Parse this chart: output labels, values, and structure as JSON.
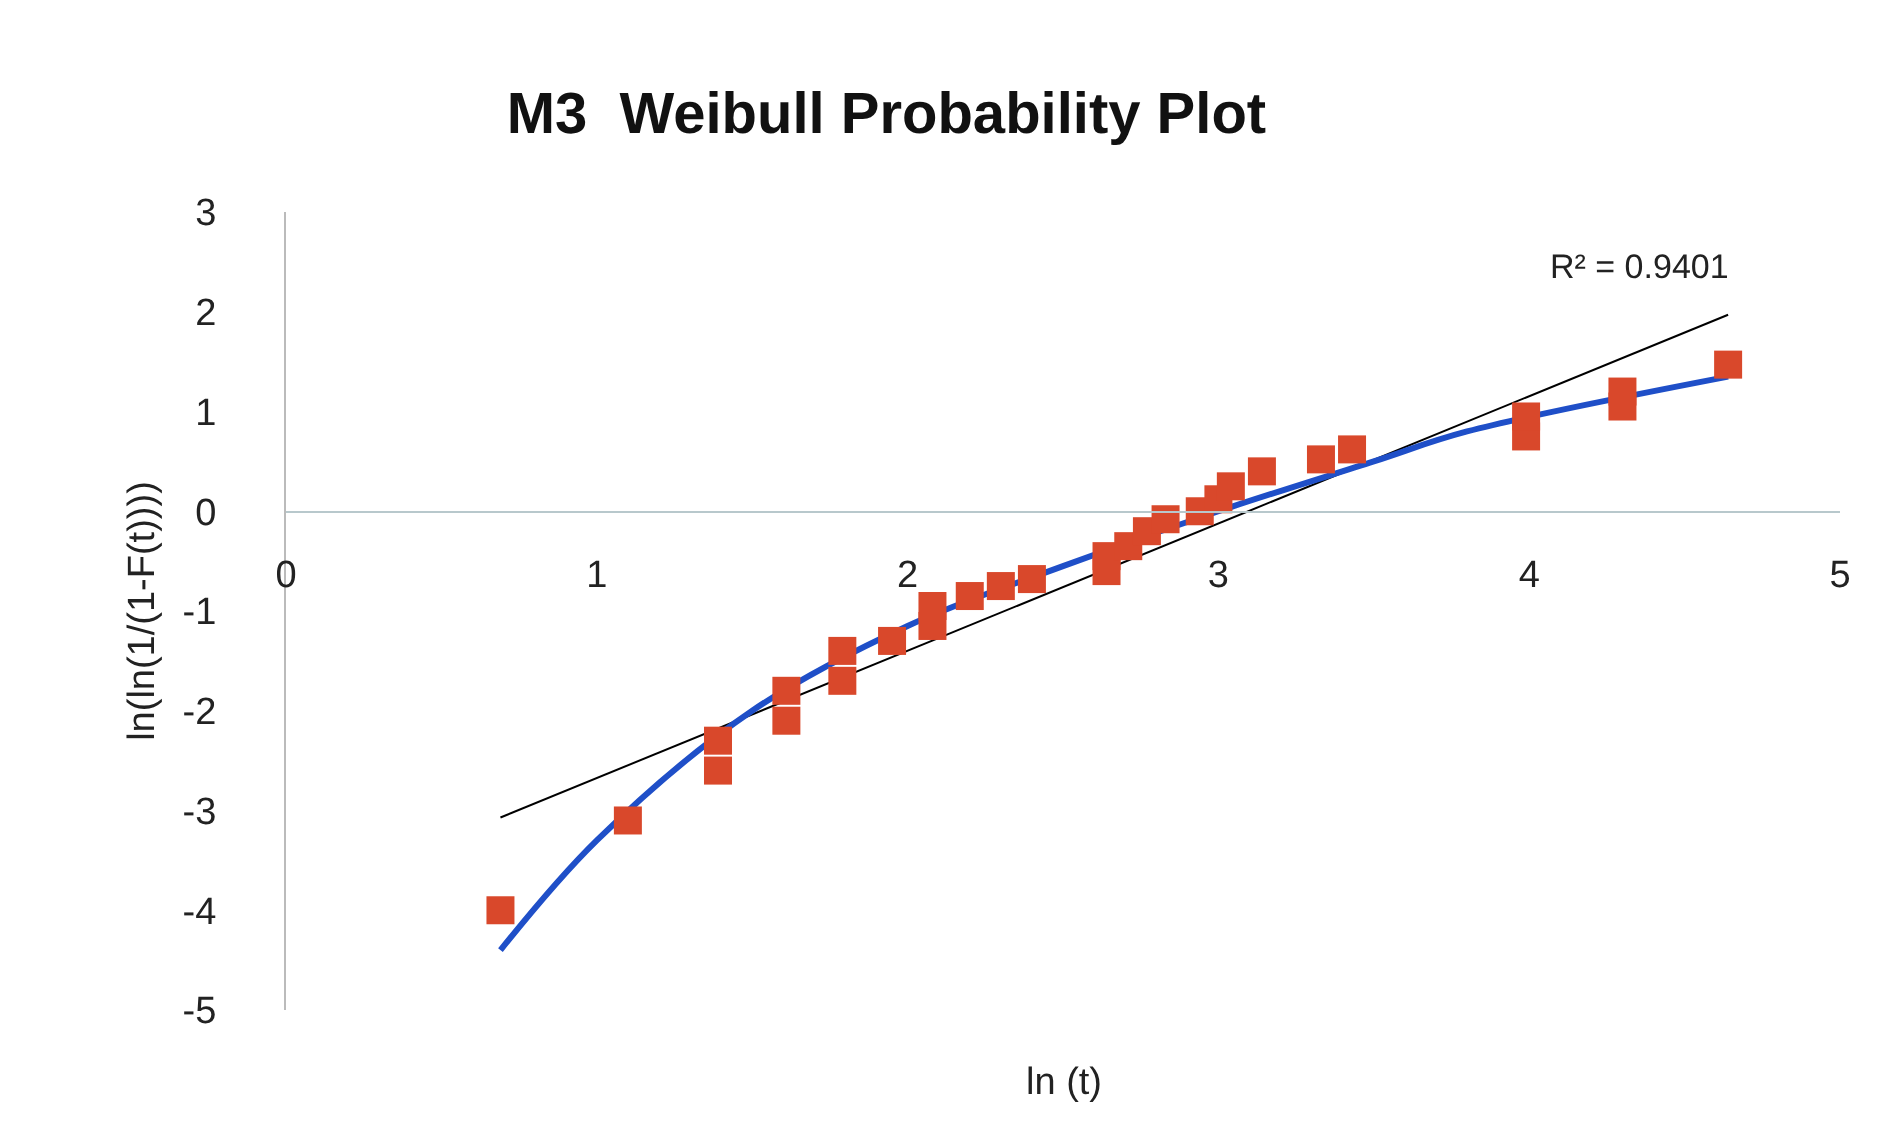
{
  "chart_data": {
    "type": "scatter",
    "title": "M3  Weibull Probability Plot",
    "xlabel": "ln (t)",
    "ylabel": "ln(ln(1/(1-F(t))))",
    "annotations": [
      "R² = 0.9401"
    ],
    "xlim": [
      0,
      5
    ],
    "ylim": [
      -5,
      3
    ],
    "xticks": [
      0,
      1,
      2,
      3,
      4,
      5
    ],
    "yticks": [
      -5,
      -4,
      -3,
      -2,
      -1,
      0,
      1,
      2,
      3
    ],
    "grid": false,
    "legend": false,
    "series": [
      {
        "marker": "square",
        "color": "#d9482b",
        "x": [
          0.69,
          1.1,
          1.39,
          1.39,
          1.61,
          1.61,
          1.79,
          1.79,
          1.95,
          2.08,
          2.08,
          2.2,
          2.3,
          2.4,
          2.64,
          2.64,
          2.71,
          2.77,
          2.83,
          2.94,
          3.0,
          3.04,
          3.14,
          3.33,
          3.43,
          3.99,
          3.99,
          4.3,
          4.3,
          4.64
        ],
        "values": [
          -4.0,
          -3.1,
          -2.6,
          -2.3,
          -2.1,
          -1.8,
          -1.7,
          -1.4,
          -1.3,
          -1.15,
          -0.95,
          -0.85,
          -0.75,
          -0.68,
          -0.6,
          -0.45,
          -0.35,
          -0.2,
          -0.08,
          0.0,
          0.12,
          0.25,
          0.4,
          0.52,
          0.62,
          0.75,
          0.95,
          1.05,
          1.2,
          1.47
        ]
      },
      {
        "type": "line",
        "color": "#000000",
        "x": [
          0.69,
          4.64
        ],
        "values": [
          -3.07,
          1.97
        ]
      },
      {
        "type": "line",
        "color": "#1f4fc8",
        "x": [
          0.69,
          1.0,
          1.5,
          2.0,
          2.5,
          3.0,
          3.5,
          3.8,
          4.64
        ],
        "values": [
          -4.4,
          -3.3,
          -2.0,
          -1.15,
          -0.55,
          0.0,
          0.5,
          0.8,
          1.35
        ]
      }
    ]
  }
}
